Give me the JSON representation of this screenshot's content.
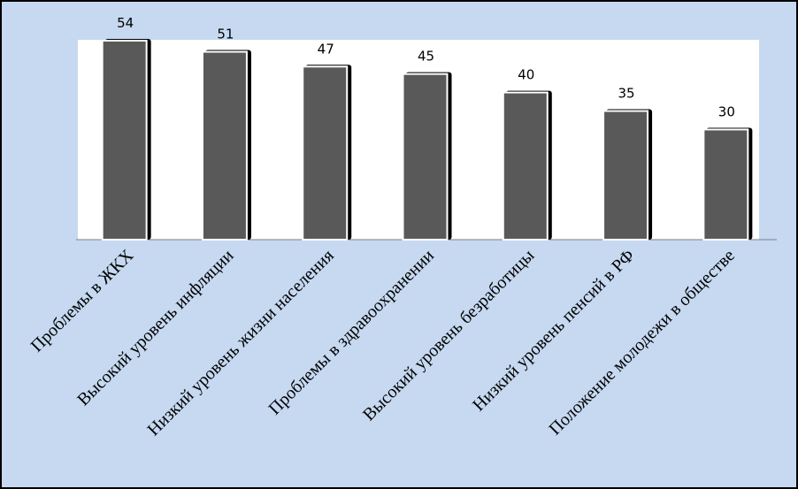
{
  "chart_data": {
    "type": "bar",
    "categories": [
      "Проблемы в ЖКХ",
      "Высокий уровень инфляции",
      "Низкий уровень жизни населения",
      "Проблемы в здравоохранении",
      "Высокий уровень безработицы",
      "Низкий уровень пенсий в РФ",
      "Положение молодежи в обществе"
    ],
    "values": [
      54,
      51,
      47,
      45,
      40,
      35,
      30
    ],
    "color": "#595959",
    "ylim": [
      0,
      54
    ]
  }
}
